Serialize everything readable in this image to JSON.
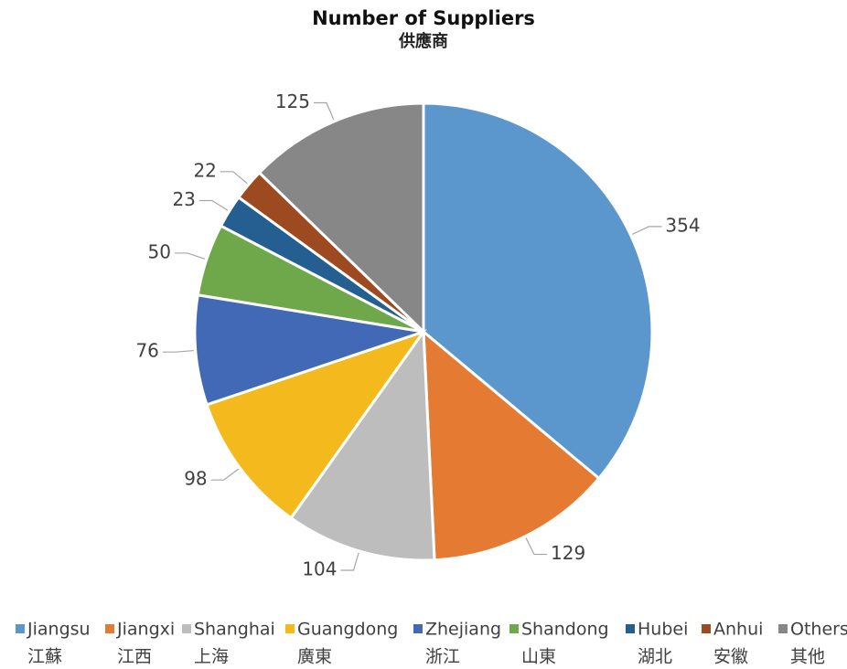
{
  "chart_data": {
    "type": "pie",
    "title": "Number of Suppliers",
    "subtitle": "供應商",
    "categories": [
      "Jiangsu",
      "Jiangxi",
      "Shanghai",
      "Guangdong",
      "Zhejiang",
      "Shandong",
      "Hubei",
      "Anhui",
      "Others"
    ],
    "categories_zh": [
      "江蘇",
      "江西",
      "上海",
      "廣東",
      "浙江",
      "山東",
      "湖北",
      "安徽",
      "其他"
    ],
    "values": [
      354,
      129,
      104,
      98,
      76,
      50,
      23,
      22,
      125
    ],
    "colors": [
      "#5b97cd",
      "#e57b32",
      "#bdbdbd",
      "#f4b91c",
      "#4169b5",
      "#6fa84a",
      "#255e90",
      "#9e4a21",
      "#878787"
    ],
    "legend": "bottom"
  }
}
